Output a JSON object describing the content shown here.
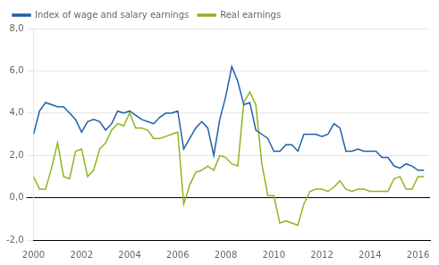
{
  "chart_data": {
    "type": "line",
    "x": [
      2000.0,
      2000.25,
      2000.5,
      2000.75,
      2001.0,
      2001.25,
      2001.5,
      2001.75,
      2002.0,
      2002.25,
      2002.5,
      2002.75,
      2003.0,
      2003.25,
      2003.5,
      2003.75,
      2004.0,
      2004.25,
      2004.5,
      2004.75,
      2005.0,
      2005.25,
      2005.5,
      2005.75,
      2006.0,
      2006.25,
      2006.5,
      2006.75,
      2007.0,
      2007.25,
      2007.5,
      2007.75,
      2008.0,
      2008.25,
      2008.5,
      2008.75,
      2009.0,
      2009.25,
      2009.5,
      2009.75,
      2010.0,
      2010.25,
      2010.5,
      2010.75,
      2011.0,
      2011.25,
      2011.5,
      2011.75,
      2012.0,
      2012.25,
      2012.5,
      2012.75,
      2013.0,
      2013.25,
      2013.5,
      2013.75,
      2014.0,
      2014.25,
      2014.5,
      2014.75,
      2015.0,
      2015.25,
      2015.5,
      2015.75,
      2016.0,
      2016.25
    ],
    "series": [
      {
        "name": "Index of wage and salary earnings",
        "color": "#1f5fa6",
        "values": [
          3.0,
          4.1,
          4.5,
          4.4,
          4.3,
          4.3,
          4.0,
          3.7,
          3.1,
          3.6,
          3.7,
          3.6,
          3.2,
          3.5,
          4.1,
          4.0,
          4.1,
          3.9,
          3.7,
          3.6,
          3.5,
          3.8,
          4.0,
          4.0,
          4.1,
          2.3,
          2.8,
          3.3,
          3.6,
          3.3,
          2.0,
          3.7,
          4.8,
          6.2,
          5.5,
          4.4,
          4.5,
          3.2,
          3.0,
          2.8,
          2.2,
          2.2,
          2.5,
          2.5,
          2.2,
          3.0,
          3.0,
          3.0,
          2.9,
          3.0,
          3.5,
          3.3,
          2.2,
          2.2,
          2.3,
          2.2,
          2.2,
          2.2,
          1.9,
          1.9,
          1.5,
          1.4,
          1.6,
          1.5,
          1.3,
          1.3
        ]
      },
      {
        "name": "Real earnings",
        "color": "#8db520",
        "values": [
          1.0,
          0.4,
          0.4,
          1.4,
          2.6,
          1.0,
          0.9,
          2.2,
          2.3,
          1.0,
          1.3,
          2.3,
          2.6,
          3.2,
          3.5,
          3.4,
          4.0,
          3.3,
          3.3,
          3.2,
          2.8,
          2.8,
          2.9,
          3.0,
          3.1,
          -0.3,
          0.6,
          1.2,
          1.3,
          1.5,
          1.3,
          2.0,
          1.9,
          1.6,
          1.5,
          4.5,
          5.0,
          4.4,
          1.6,
          0.1,
          0.1,
          -1.2,
          -1.1,
          -1.2,
          -1.3,
          -0.3,
          0.3,
          0.4,
          0.4,
          0.3,
          0.5,
          0.8,
          0.4,
          0.3,
          0.4,
          0.4,
          0.3,
          0.3,
          0.3,
          0.3,
          0.9,
          1.0,
          0.4,
          0.4,
          1.0,
          1.0
        ]
      }
    ],
    "xlim": [
      2000.0,
      2016.5
    ],
    "xticks": [
      2000,
      2002,
      2004,
      2006,
      2008,
      2010,
      2012,
      2014,
      2016
    ],
    "ylim": [
      -2.0,
      8.0
    ],
    "yticks": [
      {
        "value": -2.0,
        "label": "-2,0"
      },
      {
        "value": 0.0,
        "label": "0,0"
      },
      {
        "value": 2.0,
        "label": "2,0"
      },
      {
        "value": 4.0,
        "label": "4,0"
      },
      {
        "value": 6.0,
        "label": "6,0"
      },
      {
        "value": 8.0,
        "label": "8,0"
      }
    ],
    "grid": "y",
    "legend": "upper left"
  }
}
